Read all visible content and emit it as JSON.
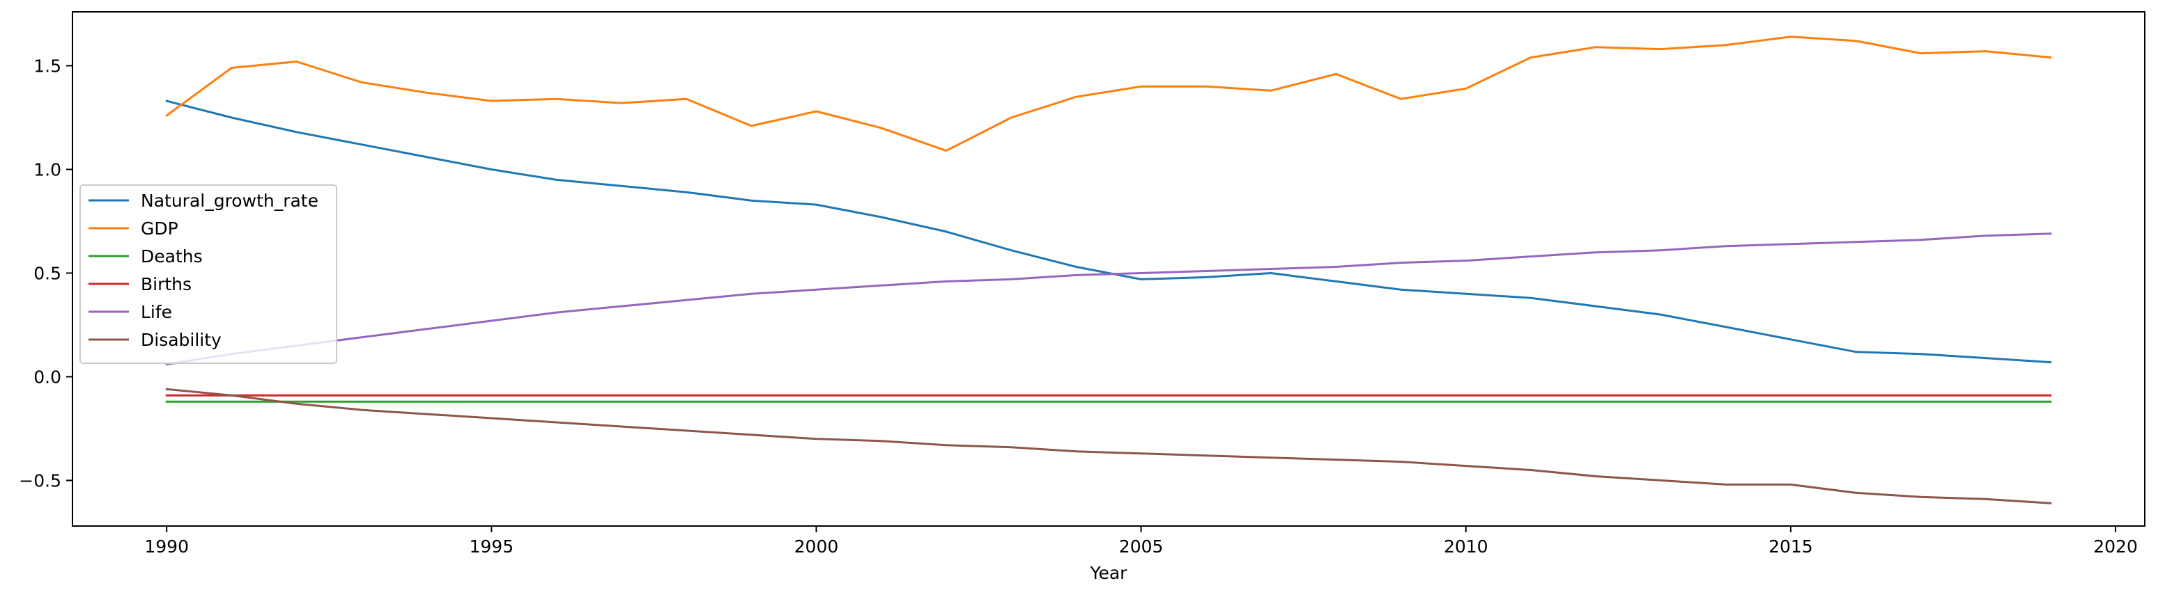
{
  "chart_data": {
    "type": "line",
    "title": "",
    "xlabel": "Year",
    "ylabel": "",
    "xlim": [
      1988.55,
      2020.45
    ],
    "ylim": [
      -0.72,
      1.76
    ],
    "xticks": [
      1990,
      1995,
      2000,
      2005,
      2010,
      2015,
      2020
    ],
    "yticks": [
      -0.5,
      0.0,
      0.5,
      1.0,
      1.5
    ],
    "ytick_labels": [
      "−0.5",
      "0.0",
      "0.5",
      "1.0",
      "1.5"
    ],
    "grid": false,
    "legend_position": "center-left",
    "x": [
      1990,
      1991,
      1992,
      1993,
      1994,
      1995,
      1996,
      1997,
      1998,
      1999,
      2000,
      2001,
      2002,
      2003,
      2004,
      2005,
      2006,
      2007,
      2008,
      2009,
      2010,
      2011,
      2012,
      2013,
      2014,
      2015,
      2016,
      2017,
      2018,
      2019
    ],
    "series": [
      {
        "name": "Natural_growth_rate",
        "color": "#1f77b4",
        "values": [
          1.33,
          1.25,
          1.18,
          1.12,
          1.06,
          1.0,
          0.95,
          0.92,
          0.89,
          0.85,
          0.83,
          0.77,
          0.7,
          0.61,
          0.53,
          0.47,
          0.48,
          0.5,
          0.46,
          0.42,
          0.4,
          0.38,
          0.34,
          0.3,
          0.24,
          0.18,
          0.12,
          0.11,
          0.09,
          0.07
        ]
      },
      {
        "name": "GDP",
        "color": "#ff7f0e",
        "values": [
          1.26,
          1.49,
          1.52,
          1.42,
          1.37,
          1.33,
          1.34,
          1.32,
          1.34,
          1.21,
          1.28,
          1.2,
          1.09,
          1.25,
          1.35,
          1.4,
          1.4,
          1.38,
          1.46,
          1.34,
          1.39,
          1.54,
          1.59,
          1.58,
          1.6,
          1.64,
          1.62,
          1.56,
          1.57,
          1.54
        ]
      },
      {
        "name": "Deaths",
        "color": "#2ca02c",
        "values": [
          -0.12,
          -0.12,
          -0.12,
          -0.12,
          -0.12,
          -0.12,
          -0.12,
          -0.12,
          -0.12,
          -0.12,
          -0.12,
          -0.12,
          -0.12,
          -0.12,
          -0.12,
          -0.12,
          -0.12,
          -0.12,
          -0.12,
          -0.12,
          -0.12,
          -0.12,
          -0.12,
          -0.12,
          -0.12,
          -0.12,
          -0.12,
          -0.12,
          -0.12,
          -0.12
        ]
      },
      {
        "name": "Births",
        "color": "#d62728",
        "values": [
          -0.09,
          -0.09,
          -0.09,
          -0.09,
          -0.09,
          -0.09,
          -0.09,
          -0.09,
          -0.09,
          -0.09,
          -0.09,
          -0.09,
          -0.09,
          -0.09,
          -0.09,
          -0.09,
          -0.09,
          -0.09,
          -0.09,
          -0.09,
          -0.09,
          -0.09,
          -0.09,
          -0.09,
          -0.09,
          -0.09,
          -0.09,
          -0.09,
          -0.09,
          -0.09
        ]
      },
      {
        "name": "Life",
        "color": "#9467bd",
        "values": [
          0.06,
          0.11,
          0.15,
          0.19,
          0.23,
          0.27,
          0.31,
          0.34,
          0.37,
          0.4,
          0.42,
          0.44,
          0.46,
          0.47,
          0.49,
          0.5,
          0.51,
          0.52,
          0.53,
          0.55,
          0.56,
          0.58,
          0.6,
          0.61,
          0.63,
          0.64,
          0.65,
          0.66,
          0.68,
          0.69
        ]
      },
      {
        "name": "Disability",
        "color": "#8c564b",
        "values": [
          -0.06,
          -0.09,
          -0.13,
          -0.16,
          -0.18,
          -0.2,
          -0.22,
          -0.24,
          -0.26,
          -0.28,
          -0.3,
          -0.31,
          -0.33,
          -0.34,
          -0.36,
          -0.37,
          -0.38,
          -0.39,
          -0.4,
          -0.41,
          -0.43,
          -0.45,
          -0.48,
          -0.5,
          -0.52,
          -0.52,
          -0.56,
          -0.58,
          -0.59,
          -0.61
        ]
      }
    ]
  }
}
